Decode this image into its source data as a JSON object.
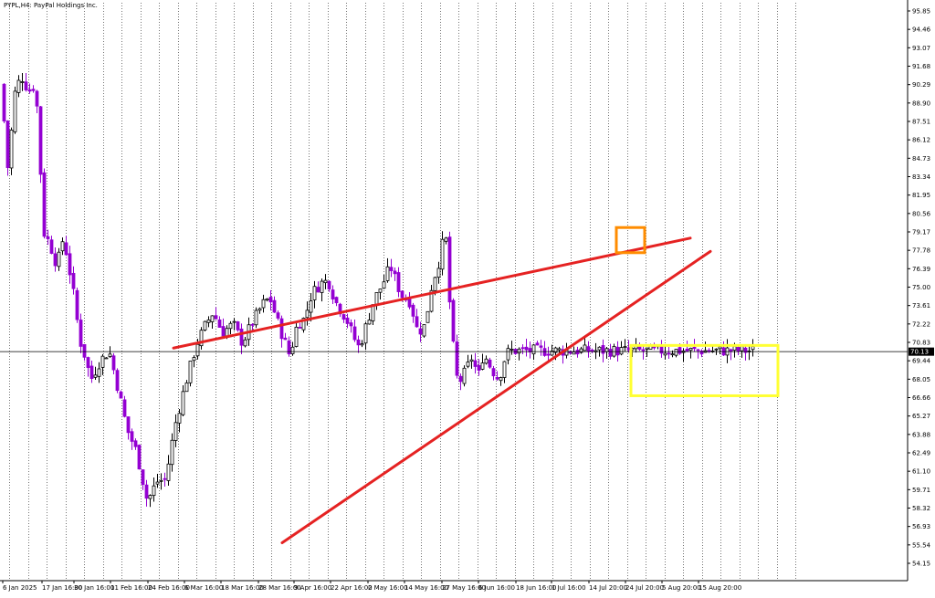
{
  "header": {
    "symbol_text": "PYPL,H4:  PayPal Holdings Inc."
  },
  "colors": {
    "bull_candle": "#000000",
    "bear_candle": "#9400d3",
    "trendline": "#e52222",
    "orange_box": "#ff8c00",
    "yellow_box": "#ffff33",
    "price_line": "#000000",
    "grid": "#000000"
  },
  "chart_data": {
    "type": "candlestick",
    "title": "PYPL,H4:  PayPal Holdings Inc.",
    "grid": true,
    "ylim": [
      53.76,
      96.55
    ],
    "y_tick_labels": [
      "95.85",
      "94.46",
      "93.07",
      "91.68",
      "90.29",
      "88.90",
      "87.51",
      "86.12",
      "84.73",
      "83.34",
      "81.95",
      "80.56",
      "79.17",
      "77.78",
      "76.39",
      "75.00",
      "73.61",
      "72.22",
      "70.83",
      "69.44",
      "68.05",
      "66.66",
      "65.27",
      "63.88",
      "62.49",
      "61.10",
      "59.71",
      "58.32",
      "56.93",
      "55.54",
      "54.15"
    ],
    "x_tick_labels": [
      "6 Jan 2025",
      "17 Jan 16:00",
      "30 Jan 16:00",
      "11 Feb 16:00",
      "24 Feb 16:00",
      "6 Mar 16:00",
      "18 Mar 16:00",
      "28 Mar 16:00",
      "9 Apr 16:00",
      "22 Apr 16:00",
      "2 May 16:00",
      "14 May 16:00",
      "27 May 16:00",
      "6 Jun 16:00",
      "18 Jun 16:00",
      "1 Jul 16:00",
      "14 Jul 20:00",
      "24 Jul 20:00",
      "5 Aug 20:00",
      "15 Aug 20:00"
    ],
    "current_price": "70.13",
    "bar_count": 206,
    "price_path": [
      [
        0,
        90.3
      ],
      [
        6,
        87.0
      ],
      [
        10,
        83.1
      ],
      [
        14,
        88.0
      ],
      [
        18,
        90.2
      ],
      [
        25,
        90.8
      ],
      [
        32,
        89.8
      ],
      [
        38,
        90.2
      ],
      [
        42,
        88.1
      ],
      [
        48,
        79.2
      ],
      [
        55,
        78.3
      ],
      [
        63,
        76.6
      ],
      [
        70,
        78.8
      ],
      [
        80,
        75.0
      ],
      [
        88,
        71.0
      ],
      [
        94,
        69.7
      ],
      [
        100,
        68.0
      ],
      [
        110,
        69.4
      ],
      [
        120,
        70.2
      ],
      [
        128,
        67.9
      ],
      [
        140,
        64.2
      ],
      [
        150,
        62.6
      ],
      [
        162,
        58.8
      ],
      [
        172,
        60.3
      ],
      [
        182,
        60.5
      ],
      [
        192,
        64.5
      ],
      [
        204,
        67.8
      ],
      [
        216,
        70.7
      ],
      [
        226,
        72.2
      ],
      [
        234,
        73.1
      ],
      [
        244,
        71.6
      ],
      [
        256,
        72.2
      ],
      [
        266,
        70.8
      ],
      [
        276,
        72.2
      ],
      [
        288,
        73.7
      ],
      [
        296,
        74.2
      ],
      [
        306,
        72.1
      ],
      [
        318,
        69.8
      ],
      [
        326,
        72.2
      ],
      [
        334,
        72.6
      ],
      [
        342,
        74.5
      ],
      [
        352,
        75.3
      ],
      [
        360,
        75.5
      ],
      [
        368,
        73.9
      ],
      [
        380,
        72.6
      ],
      [
        388,
        71.2
      ],
      [
        394,
        70.4
      ],
      [
        402,
        72.2
      ],
      [
        410,
        74.0
      ],
      [
        420,
        75.3
      ],
      [
        428,
        76.6
      ],
      [
        440,
        74.4
      ],
      [
        450,
        73.9
      ],
      [
        458,
        71.6
      ],
      [
        466,
        72.1
      ],
      [
        474,
        75.4
      ],
      [
        480,
        76.5
      ],
      [
        485,
        78.2
      ],
      [
        490,
        78.6
      ],
      [
        494,
        72.3
      ],
      [
        497,
        70.5
      ],
      [
        502,
        67.6
      ],
      [
        510,
        68.6
      ],
      [
        518,
        69.8
      ],
      [
        524,
        68.1
      ],
      [
        530,
        70.0
      ],
      [
        536,
        69.2
      ],
      [
        542,
        68.5
      ],
      [
        547,
        68.0
      ],
      [
        552,
        69.4
      ],
      [
        558,
        70.2
      ]
    ],
    "trendlines": [
      {
        "from": {
          "x": "6 Mar 16:00",
          "y": 70.4
        },
        "to": {
          "x": "5 Aug 20:00",
          "y": 78.7
        }
      },
      {
        "from": {
          "x": "28 Mar 16:00",
          "y": 55.7
        },
        "to": {
          "x": "5 Aug 20:00",
          "y": 77.7
        }
      }
    ],
    "boxes": [
      {
        "name": "orange-highlight",
        "y_range": [
          77.6,
          79.5
        ]
      },
      {
        "name": "yellow-range",
        "y_range": [
          66.8,
          70.6
        ]
      }
    ]
  }
}
